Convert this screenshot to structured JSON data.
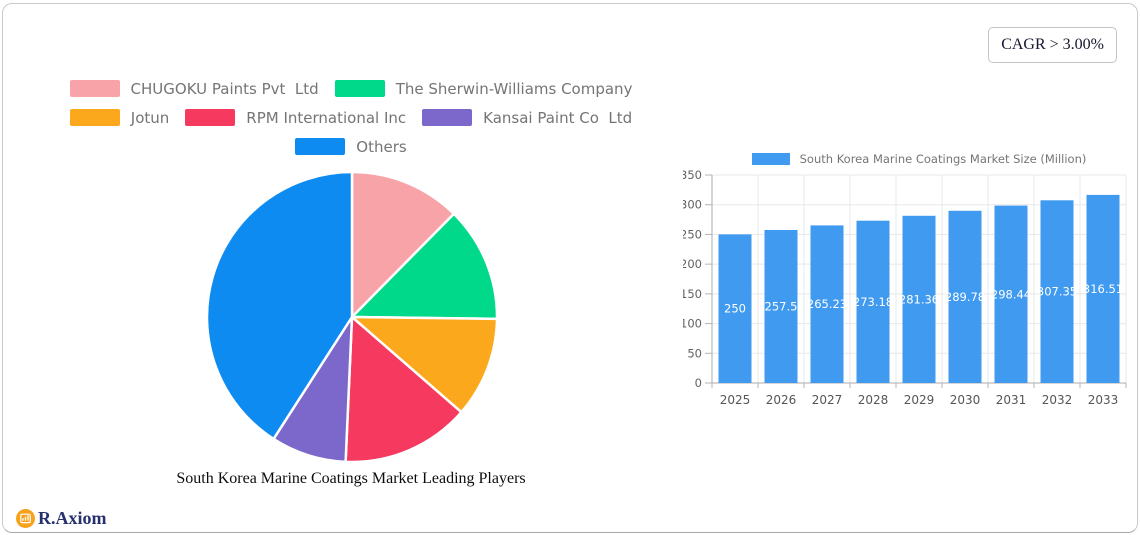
{
  "cagr_badge": {
    "label": "CAGR > 3.00%"
  },
  "logo": {
    "text": "R.Axiom",
    "icon_color": "#F6A21D"
  },
  "chart_data": [
    {
      "type": "pie",
      "title": "South Korea Marine Coatings Market Leading Players",
      "labels": [
        "CHUGOKU Paints Pvt  Ltd",
        "The Sherwin-Williams Company",
        "Jotun",
        "RPM International Inc",
        "Kansai Paint Co  Ltd",
        "Others"
      ],
      "values_percent": [
        12.4,
        12.8,
        11.2,
        14.3,
        8.4,
        40.9
      ],
      "colors": [
        "#F7A3A8",
        "#00D88A",
        "#FBA81C",
        "#F5395F",
        "#7C68CA",
        "#0E8BF1"
      ],
      "legend_position": "top",
      "start_angle": "12-oclock-clockwise"
    },
    {
      "type": "bar",
      "legend_label": "South Korea Marine Coatings Market Size (Million)",
      "categories": [
        "2025",
        "2026",
        "2027",
        "2028",
        "2029",
        "2030",
        "2031",
        "2032",
        "2033"
      ],
      "values": [
        250,
        257.5,
        265.23,
        273.18,
        281.36,
        289.78,
        298.44,
        307.35,
        316.51
      ],
      "value_labels": [
        "250",
        "257.5",
        "265.23",
        "273.18",
        "281.36",
        "289.78",
        "298.44",
        "307.35",
        "316.51"
      ],
      "ylim": [
        0,
        350
      ],
      "ytick_step": 50,
      "grid": true,
      "bar_color": "#3F9AF0",
      "legend_position": "top"
    }
  ]
}
